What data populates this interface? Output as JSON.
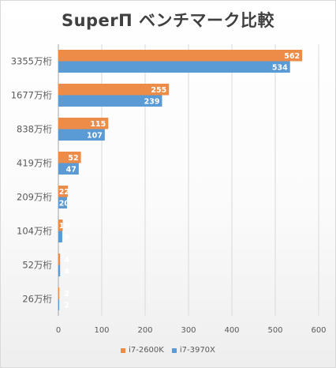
{
  "chart_data": {
    "type": "bar",
    "orientation": "horizontal",
    "title": "SuperΠ ベンチマーク比較",
    "categories": [
      "3355万桁",
      "1677万桁",
      "838万桁",
      "419万桁",
      "209万桁",
      "104万桁",
      "52万桁",
      "26万桁"
    ],
    "series": [
      {
        "name": "i7-2600K",
        "color": "#ed8c48",
        "values": [
          562,
          255,
          115,
          52,
          22,
          10,
          4,
          2
        ]
      },
      {
        "name": "i7-3970X",
        "color": "#5b9bd5",
        "values": [
          534,
          239,
          107,
          47,
          20,
          9,
          4,
          2
        ]
      }
    ],
    "xlim": [
      0,
      600
    ],
    "xticks": [
      0,
      100,
      200,
      300,
      400,
      500,
      600
    ],
    "grid": true,
    "legend_position": "bottom",
    "data_labels": true
  }
}
